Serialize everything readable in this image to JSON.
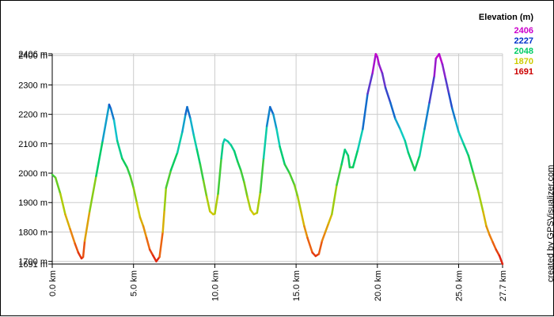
{
  "chart_data": {
    "type": "line",
    "title": "",
    "xlabel": "",
    "ylabel": "",
    "xlim": [
      0,
      27.7
    ],
    "ylim": [
      1691,
      2406
    ],
    "grid": true,
    "x_ticks": [
      "0.0 km",
      "5.0 km",
      "10.0 km",
      "15.0 km",
      "20.0 km",
      "25.0 km",
      "27.7 km"
    ],
    "y_ticks": [
      "2406 m",
      "2400 m",
      "2300 m",
      "2200 m",
      "2100 m",
      "2000 m",
      "1900 m",
      "1800 m",
      "1700 m",
      "1691 m"
    ],
    "legend_title": "Elevation (m)",
    "legend_placement": "top-right",
    "legend": [
      {
        "label": "2406",
        "color": "#cc00cc"
      },
      {
        "label": "2227",
        "color": "#0033cc"
      },
      {
        "label": "2048",
        "color": "#00cc66"
      },
      {
        "label": "1870",
        "color": "#cccc00"
      },
      {
        "label": "1691",
        "color": "#cc0000"
      }
    ],
    "credit": "created by GPSVisualizer.com",
    "series": [
      {
        "x": [
          0.0,
          0.2,
          0.5,
          0.8,
          1.1,
          1.4,
          1.6,
          1.8,
          1.9,
          2.0,
          2.3,
          2.7,
          3.1,
          3.5,
          3.6,
          3.8,
          4.0,
          4.3,
          4.6,
          4.8,
          5.0,
          5.2,
          5.4,
          5.6,
          5.8,
          6.0,
          6.2,
          6.4,
          6.6,
          6.8,
          6.9,
          7.0,
          7.3,
          7.7,
          8.0,
          8.2,
          8.3,
          8.5,
          8.7,
          8.9,
          9.1,
          9.3,
          9.5,
          9.7,
          9.9,
          10.0,
          10.2,
          10.4,
          10.5,
          10.6,
          10.8,
          11.0,
          11.2,
          11.4,
          11.6,
          11.8,
          12.0,
          12.2,
          12.4,
          12.6,
          12.8,
          13.0,
          13.2,
          13.4,
          13.6,
          13.8,
          14.0,
          14.3,
          14.6,
          14.9,
          15.1,
          15.3,
          15.5,
          15.7,
          16.0,
          16.2,
          16.4,
          16.6,
          16.8,
          17.0,
          17.2,
          17.5,
          17.8,
          18.0,
          18.2,
          18.3,
          18.5,
          18.8,
          19.1,
          19.4,
          19.7,
          19.9,
          20.0,
          20.1,
          20.3,
          20.5,
          20.8,
          21.1,
          21.4,
          21.7,
          21.9,
          22.1,
          22.3,
          22.6,
          22.9,
          23.2,
          23.5,
          23.6,
          23.8,
          24.0,
          24.2,
          24.4,
          24.6,
          24.8,
          25.0,
          25.3,
          25.6,
          25.9,
          26.2,
          26.5,
          26.7,
          26.9,
          27.1,
          27.3,
          27.5,
          27.7
        ],
        "y": [
          1995,
          1985,
          1930,
          1860,
          1810,
          1760,
          1730,
          1710,
          1715,
          1770,
          1870,
          1990,
          2110,
          2233,
          2220,
          2180,
          2110,
          2050,
          2020,
          1990,
          1950,
          1900,
          1850,
          1820,
          1780,
          1740,
          1720,
          1700,
          1715,
          1800,
          1875,
          1950,
          2010,
          2070,
          2140,
          2200,
          2225,
          2185,
          2130,
          2080,
          2030,
          1975,
          1920,
          1870,
          1860,
          1862,
          1930,
          2050,
          2100,
          2115,
          2108,
          2095,
          2075,
          2040,
          2010,
          1970,
          1920,
          1875,
          1860,
          1865,
          1935,
          2050,
          2160,
          2225,
          2200,
          2150,
          2090,
          2030,
          2000,
          1960,
          1920,
          1870,
          1820,
          1780,
          1730,
          1718,
          1725,
          1770,
          1800,
          1830,
          1860,
          1960,
          2030,
          2080,
          2060,
          2020,
          2020,
          2080,
          2150,
          2270,
          2340,
          2405,
          2395,
          2370,
          2340,
          2290,
          2240,
          2185,
          2150,
          2110,
          2070,
          2040,
          2010,
          2060,
          2150,
          2240,
          2330,
          2390,
          2405,
          2370,
          2320,
          2270,
          2220,
          2180,
          2140,
          2100,
          2060,
          2000,
          1940,
          1870,
          1820,
          1790,
          1765,
          1740,
          1720,
          1691
        ]
      }
    ]
  }
}
